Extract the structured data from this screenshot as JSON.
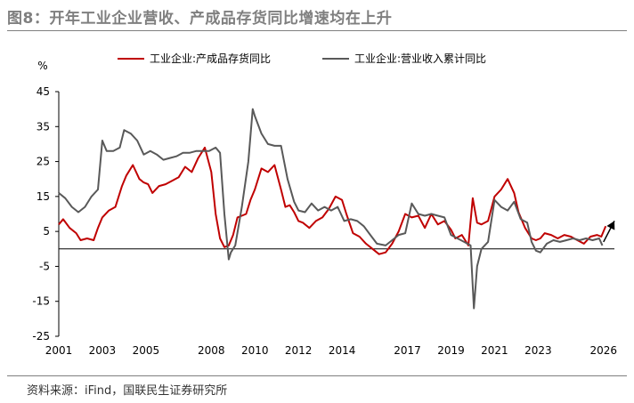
{
  "title": "图8：开年工业企业营收、产成品存货同比增速均在上升",
  "source": "资料来源：iFind，国联民生证券研究所",
  "chart_data": {
    "type": "line",
    "ylabel": "%",
    "ylim": [
      -25,
      45
    ],
    "yticks": [
      45,
      35,
      25,
      15,
      5,
      -5,
      -15,
      -25
    ],
    "xlim": [
      2001,
      2026.5
    ],
    "xticks": [
      "2001",
      "2003",
      "2005",
      "2008",
      "2010",
      "2012",
      "2014",
      "2017",
      "2019",
      "2021",
      "2023",
      "2026"
    ],
    "legend_position": "top",
    "grid": false,
    "colors": {
      "inventory": "#c00000",
      "revenue": "#595959",
      "arrow": "#000000"
    },
    "series": [
      {
        "name": "工业企业:产成品存货同比",
        "x": [
          2001.0,
          2001.2,
          2001.5,
          2001.8,
          2002.0,
          2002.3,
          2002.6,
          2002.8,
          2003.0,
          2003.3,
          2003.6,
          2003.9,
          2004.1,
          2004.4,
          2004.7,
          2004.9,
          2005.1,
          2005.3,
          2005.6,
          2005.9,
          2006.2,
          2006.5,
          2006.8,
          2007.1,
          2007.4,
          2007.7,
          2008.0,
          2008.2,
          2008.4,
          2008.6,
          2008.8,
          2009.0,
          2009.2,
          2009.4,
          2009.6,
          2009.8,
          2010.0,
          2010.3,
          2010.6,
          2010.9,
          2011.2,
          2011.4,
          2011.6,
          2011.8,
          2012.0,
          2012.2,
          2012.5,
          2012.8,
          2013.1,
          2013.4,
          2013.7,
          2014.0,
          2014.2,
          2014.5,
          2014.8,
          2015.1,
          2015.4,
          2015.7,
          2016.0,
          2016.3,
          2016.6,
          2016.9,
          2017.2,
          2017.5,
          2017.8,
          2018.1,
          2018.4,
          2018.7,
          2019.0,
          2019.2,
          2019.5,
          2019.8,
          2020.0,
          2020.2,
          2020.4,
          2020.7,
          2021.0,
          2021.3,
          2021.6,
          2021.9,
          2022.1,
          2022.4,
          2022.7,
          2022.9,
          2023.1,
          2023.3,
          2023.6,
          2023.9,
          2024.2,
          2024.5,
          2024.8,
          2025.1,
          2025.4,
          2025.7,
          2025.9,
          2026.1
        ],
        "values": [
          7,
          8.5,
          6,
          4.5,
          2.5,
          3,
          2.5,
          6,
          9,
          11,
          12,
          18,
          21,
          24,
          20,
          19,
          18.5,
          16,
          18,
          18.5,
          19.5,
          20.5,
          23.5,
          22,
          26,
          29,
          22,
          10,
          3,
          0.5,
          1,
          4,
          9,
          9.5,
          10,
          14,
          17,
          23,
          22,
          24,
          17,
          12,
          12.5,
          10.5,
          8,
          7.5,
          6,
          8,
          9,
          11.5,
          15,
          14,
          10,
          4.5,
          3.5,
          1.5,
          0,
          -1.5,
          -1,
          1.5,
          5,
          10,
          9,
          9.5,
          6,
          10,
          7,
          8,
          5.5,
          3,
          4,
          1,
          14.5,
          7.5,
          7,
          8,
          15,
          17,
          20,
          16,
          10.5,
          6,
          3,
          2.5,
          3,
          4.5,
          4,
          3,
          4,
          3.5,
          2.5,
          1.5,
          3.5,
          4,
          3.5,
          6.5
        ]
      },
      {
        "name": "工业企业:营业收入累计同比",
        "x": [
          2001.0,
          2001.3,
          2001.6,
          2001.9,
          2002.2,
          2002.5,
          2002.8,
          2003.0,
          2003.2,
          2003.5,
          2003.8,
          2004.0,
          2004.3,
          2004.6,
          2004.9,
          2005.2,
          2005.5,
          2005.8,
          2006.1,
          2006.4,
          2006.7,
          2007.0,
          2007.3,
          2007.6,
          2007.9,
          2008.2,
          2008.4,
          2008.6,
          2008.8,
          2008.9,
          2009.1,
          2009.4,
          2009.7,
          2009.9,
          2010.0,
          2010.3,
          2010.6,
          2010.9,
          2011.2,
          2011.5,
          2011.8,
          2012.0,
          2012.3,
          2012.6,
          2012.9,
          2013.2,
          2013.5,
          2013.8,
          2014.1,
          2014.4,
          2014.7,
          2015.0,
          2015.3,
          2015.6,
          2016.0,
          2016.3,
          2016.6,
          2016.9,
          2017.2,
          2017.5,
          2017.8,
          2018.1,
          2018.4,
          2018.7,
          2019.0,
          2019.3,
          2019.6,
          2019.9,
          2020.05,
          2020.2,
          2020.4,
          2020.7,
          2021.0,
          2021.3,
          2021.6,
          2021.9,
          2022.2,
          2022.5,
          2022.7,
          2022.9,
          2023.1,
          2023.4,
          2023.7,
          2024.0,
          2024.3,
          2024.6,
          2024.9,
          2025.2,
          2025.5,
          2025.8,
          2025.95
        ],
        "values": [
          16,
          14.5,
          12,
          10.5,
          12,
          15,
          17,
          31,
          28,
          28,
          29,
          34,
          33,
          31,
          27,
          28,
          27,
          25.5,
          26,
          26.5,
          27.5,
          27.5,
          28,
          28,
          28,
          29,
          27.5,
          10,
          -3,
          -1,
          1,
          12,
          25,
          40,
          38,
          33,
          30,
          29.5,
          29.5,
          20,
          13.5,
          11,
          10.5,
          13,
          11,
          12,
          11,
          12,
          8,
          8.5,
          8,
          6.5,
          4,
          1.5,
          1,
          2.5,
          4,
          4.5,
          13,
          10,
          9.5,
          10,
          9.5,
          9,
          4,
          3,
          2,
          1,
          -17,
          -5,
          0,
          2,
          14,
          12,
          11,
          13.5,
          8.5,
          7.5,
          2,
          -0.5,
          -1,
          1.5,
          2.5,
          2,
          2.5,
          3,
          2.5,
          3,
          2.5,
          3,
          1
        ]
      }
    ],
    "arrow": {
      "from": [
        2026.0,
        2.0
      ],
      "to": [
        2026.5,
        8.0
      ]
    }
  }
}
